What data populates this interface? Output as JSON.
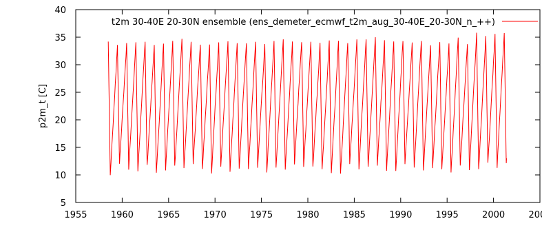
{
  "chart_data": {
    "type": "line",
    "title": "",
    "xlabel": "",
    "ylabel": "p2m_t [C]",
    "xlim": [
      1955,
      2005
    ],
    "ylim": [
      5,
      40
    ],
    "xticks": [
      1955,
      1960,
      1965,
      1970,
      1975,
      1980,
      1985,
      1990,
      1995,
      2000,
      2005
    ],
    "yticks": [
      5,
      10,
      15,
      20,
      25,
      30,
      35,
      40
    ],
    "grid": false,
    "legend_position": "top-right",
    "series": [
      {
        "name": "t2m 30-40E 20-30N ensemble (ens_demeter_ecmwf_t2m_aug_30-40E_20-30N_n_++)",
        "color": "#ff0000",
        "start_year": 1958.5,
        "end_year": 2001.9,
        "annual_peaks": [
          34.2,
          33.6,
          33.8,
          34.0,
          34.1,
          33.6,
          34.0,
          34.2,
          34.5,
          34.0,
          33.8,
          33.7,
          34.3,
          34.4,
          34.0,
          34.1,
          34.3,
          33.5,
          34.4,
          34.6,
          34.1,
          34.3,
          34.2,
          33.8,
          34.3,
          34.4,
          33.8,
          34.6,
          34.6,
          34.9,
          34.3,
          34.3,
          34.5,
          33.8,
          34.5,
          33.7,
          34.2,
          34.0,
          35.0,
          33.9,
          35.6,
          35.0,
          35.4,
          35.7
        ],
        "annual_troughs": [
          10.0,
          12.0,
          11.0,
          10.8,
          11.6,
          10.2,
          11.0,
          11.5,
          11.0,
          12.0,
          11.0,
          10.5,
          11.5,
          10.5,
          11.2,
          11.0,
          11.5,
          10.5,
          11.5,
          11.0,
          12.0,
          11.5,
          11.3,
          11.0,
          10.2,
          10.0,
          12.0,
          11.0,
          11.3,
          11.8,
          11.0,
          10.5,
          12.0,
          11.3,
          10.8,
          11.4,
          11.0,
          10.2,
          11.5,
          11.0,
          11.0,
          12.0,
          11.5,
          12.0
        ]
      }
    ]
  }
}
